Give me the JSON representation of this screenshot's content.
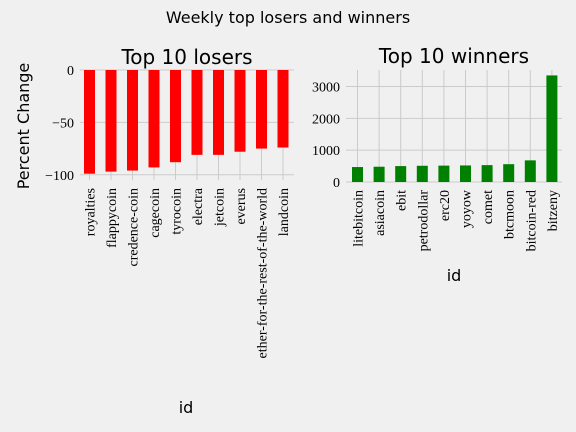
{
  "figure": {
    "suptitle": "Weekly top losers and winners",
    "background": "#f0f0f0",
    "grid_color": "#cbcbcb"
  },
  "chart_data": [
    {
      "type": "bar",
      "title": "Top 10 losers",
      "xlabel": "id",
      "ylabel": "Percent Change",
      "color": "#ff0000",
      "grid": true,
      "categories": [
        "royalties",
        "flappycoin",
        "credence-coin",
        "cagecoin",
        "tyrocoin",
        "electra",
        "jetcoin",
        "everus",
        "ether-for-the-rest-of-the-world",
        "landcoin"
      ],
      "values": [
        -99,
        -97,
        -96,
        -93,
        -88,
        -81,
        -81,
        -78,
        -75,
        -74
      ],
      "ylim": [
        -105,
        0
      ],
      "yticks": [
        0,
        -50,
        -100
      ]
    },
    {
      "type": "bar",
      "title": "Top 10 winners",
      "xlabel": "id",
      "ylabel": "",
      "color": "#008000",
      "grid": true,
      "categories": [
        "litebitcoin",
        "asiacoin",
        "ebit",
        "petrodollar",
        "erc20",
        "yoyow",
        "comet",
        "btcmoon",
        "bitcoin-red",
        "bitzeny"
      ],
      "values": [
        470,
        480,
        500,
        510,
        515,
        520,
        530,
        560,
        680,
        3350
      ],
      "ylim": [
        0,
        3520
      ],
      "yticks": [
        0,
        1000,
        2000,
        3000
      ]
    }
  ]
}
